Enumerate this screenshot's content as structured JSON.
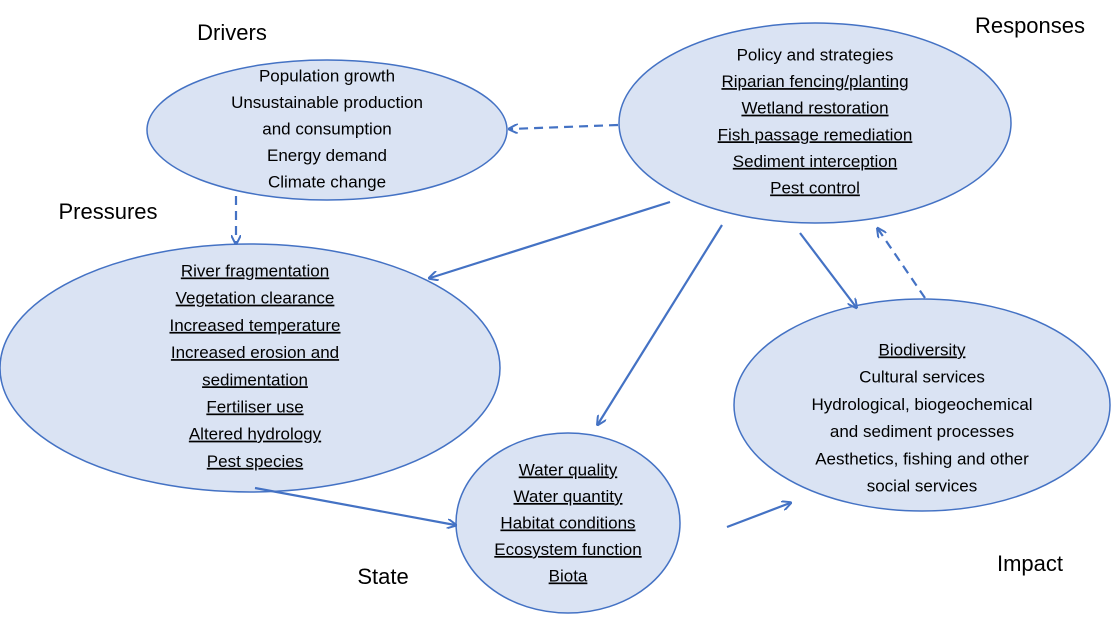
{
  "nodes": [
    {
      "label": "Drivers",
      "items": [
        {
          "text": "Population growth",
          "underline": false
        },
        {
          "text": "Unsustainable production",
          "underline": false
        },
        {
          "text": "and consumption",
          "underline": false
        },
        {
          "text": "Energy demand",
          "underline": false
        },
        {
          "text": "Climate change",
          "underline": false
        }
      ]
    },
    {
      "label": "Responses",
      "items": [
        {
          "text": "Policy and strategies",
          "underline": false
        },
        {
          "text": "Riparian fencing/planting",
          "underline": true
        },
        {
          "text": "Wetland restoration",
          "underline": true
        },
        {
          "text": "Fish passage remediation",
          "underline": true
        },
        {
          "text": "Sediment interception",
          "underline": true
        },
        {
          "text": "Pest control",
          "underline": true
        }
      ]
    },
    {
      "label": "Pressures",
      "items": [
        {
          "text": "River fragmentation",
          "underline": true
        },
        {
          "text": "Vegetation clearance",
          "underline": true
        },
        {
          "text": "Increased temperature",
          "underline": true
        },
        {
          "text": "Increased erosion and",
          "underline": true
        },
        {
          "text": "sedimentation",
          "underline": true
        },
        {
          "text": "Fertiliser use",
          "underline": true
        },
        {
          "text": "Altered hydrology",
          "underline": true
        },
        {
          "text": "Pest species",
          "underline": true
        }
      ]
    },
    {
      "label": "State",
      "items": [
        {
          "text": "Water quality",
          "underline": true
        },
        {
          "text": "Water quantity",
          "underline": true
        },
        {
          "text": "Habitat conditions",
          "underline": true
        },
        {
          "text": "Ecosystem function",
          "underline": true
        },
        {
          "text": "Biota",
          "underline": true
        }
      ]
    },
    {
      "label": "Impact",
      "items": [
        {
          "text": "Biodiversity",
          "underline": true
        },
        {
          "text": "Cultural services",
          "underline": false
        },
        {
          "text": "Hydrological, biogeochemical",
          "underline": false
        },
        {
          "text": "and sediment processes",
          "underline": false
        },
        {
          "text": "Aesthetics, fishing and other",
          "underline": false
        },
        {
          "text": "social services",
          "underline": false
        }
      ]
    }
  ]
}
